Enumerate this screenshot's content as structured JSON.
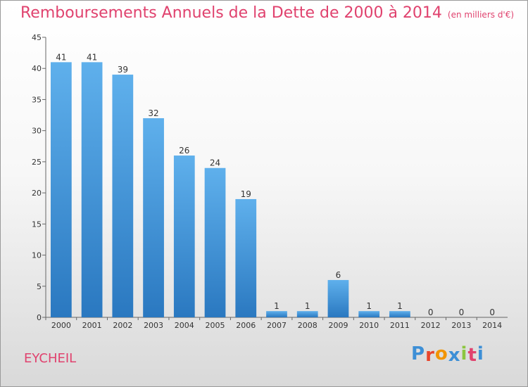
{
  "chart_data": {
    "type": "bar",
    "title": "Remboursements Annuels de la Dette de 2000 à 2014",
    "subtitle": "(en milliers d'€)",
    "categories": [
      "2000",
      "2001",
      "2002",
      "2003",
      "2004",
      "2005",
      "2006",
      "2007",
      "2008",
      "2009",
      "2010",
      "2011",
      "2012",
      "2013",
      "2014"
    ],
    "values": [
      41,
      41,
      39,
      32,
      26,
      24,
      19,
      1,
      1,
      6,
      1,
      1,
      0,
      0,
      0
    ],
    "ylim": [
      0,
      45
    ],
    "yticks": [
      0,
      5,
      10,
      15,
      20,
      25,
      30,
      35,
      40,
      45
    ],
    "grid": false,
    "bar_color": "#3d8fd6"
  },
  "commune": "EYCHEIL",
  "logo": {
    "letters": [
      "P",
      "r",
      "o",
      "x",
      "i",
      "t",
      "i"
    ],
    "colors": [
      "#3d8fd6",
      "#e8452c",
      "#f29400",
      "#3d8fd6",
      "#8cc63f",
      "#e0426e",
      "#3d8fd6"
    ]
  },
  "colors": {
    "title": "#e0426e",
    "axis": "#666666"
  }
}
